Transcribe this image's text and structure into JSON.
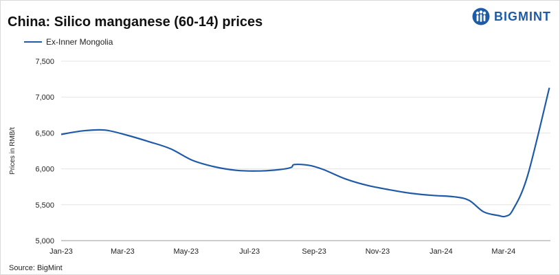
{
  "logo": {
    "text": "BIGMINT",
    "color": "#1f5aa6",
    "icon": "people-logo-icon"
  },
  "source": "Source: BigMint",
  "chart_data": {
    "type": "line",
    "title": "China: Silico manganese (60-14) prices",
    "xlabel": "",
    "ylabel": "Prices in RMB/t",
    "ylim": [
      5000,
      7500
    ],
    "yticks": [
      5000,
      5500,
      6000,
      6500,
      7000,
      7500
    ],
    "ytick_labels": [
      "5,000",
      "5,500",
      "6,000",
      "6,500",
      "7,000",
      "7,500"
    ],
    "xlim": [
      "2023-01-01",
      "2024-04-15"
    ],
    "xticks": [
      "2023-01-01",
      "2023-03-01",
      "2023-05-01",
      "2023-07-01",
      "2023-09-01",
      "2023-11-01",
      "2024-01-01",
      "2024-03-01"
    ],
    "xtick_labels": [
      "Jan-23",
      "Mar-23",
      "May-23",
      "Jul-23",
      "Sep-23",
      "Nov-23",
      "Jan-24",
      "Mar-24"
    ],
    "grid": {
      "horizontal": true,
      "vertical": false
    },
    "legend_position": "top-left",
    "series": [
      {
        "name": "Ex-Inner Mongolia",
        "color": "#1f5aa6",
        "x": [
          "2023-01-01",
          "2023-01-22",
          "2023-02-12",
          "2023-03-05",
          "2023-03-26",
          "2023-04-16",
          "2023-05-07",
          "2023-05-28",
          "2023-06-18",
          "2023-07-09",
          "2023-07-30",
          "2023-08-10",
          "2023-08-13",
          "2023-08-27",
          "2023-09-10",
          "2023-10-01",
          "2023-10-22",
          "2023-11-12",
          "2023-12-03",
          "2023-12-24",
          "2024-01-14",
          "2024-01-28",
          "2024-02-11",
          "2024-02-25",
          "2024-03-03",
          "2024-03-10",
          "2024-03-24",
          "2024-04-14"
        ],
        "y": [
          6480,
          6530,
          6540,
          6470,
          6380,
          6280,
          6120,
          6030,
          5980,
          5970,
          5990,
          6020,
          6060,
          6050,
          5990,
          5860,
          5770,
          5710,
          5660,
          5630,
          5610,
          5560,
          5400,
          5350,
          5340,
          5430,
          5900,
          7130
        ]
      }
    ]
  }
}
